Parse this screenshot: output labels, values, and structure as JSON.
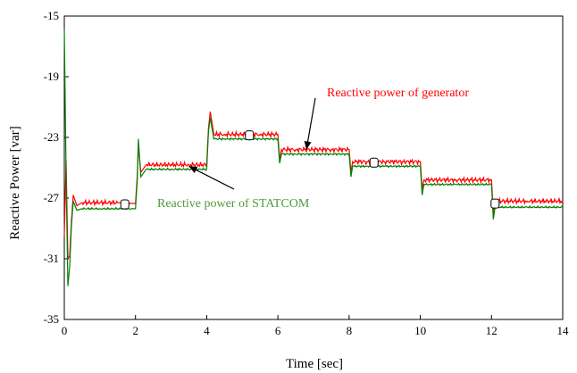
{
  "chart_data": {
    "type": "line",
    "xlabel": "Time [sec]",
    "ylabel": "Reactive Power [var]",
    "xlim": [
      0,
      14
    ],
    "ylim": [
      -35,
      -15
    ],
    "xticks": [
      0,
      2,
      4,
      6,
      8,
      10,
      12,
      14
    ],
    "yticks": [
      -15,
      -19,
      -23,
      -27,
      -31,
      -35
    ],
    "colors": {
      "generator": "#ff0000",
      "statcom": "#008000",
      "marker": "#000000"
    },
    "series": [
      {
        "color": "#ff0000",
        "points": [
          [
            0,
            -29.5
          ],
          [
            0.05,
            -24.5
          ],
          [
            0.1,
            -31.0
          ],
          [
            0.15,
            -30.8
          ],
          [
            0.2,
            -28.5
          ],
          [
            0.25,
            -26.8
          ],
          [
            0.35,
            -27.5
          ],
          [
            0.5,
            -27.3
          ],
          [
            1.0,
            -27.3
          ],
          [
            1.5,
            -27.3
          ],
          [
            1.9,
            -27.35
          ],
          [
            2.0,
            -27.35
          ],
          [
            2.05,
            -25.5
          ],
          [
            2.08,
            -23.6
          ],
          [
            2.15,
            -25.3
          ],
          [
            2.3,
            -24.8
          ],
          [
            3.0,
            -24.8
          ],
          [
            3.5,
            -24.8
          ],
          [
            4.0,
            -24.8
          ],
          [
            4.05,
            -22.4
          ],
          [
            4.1,
            -21.3
          ],
          [
            4.2,
            -22.8
          ],
          [
            4.5,
            -22.8
          ],
          [
            5.0,
            -22.8
          ],
          [
            5.5,
            -22.8
          ],
          [
            6.0,
            -22.8
          ],
          [
            6.05,
            -24.5
          ],
          [
            6.1,
            -23.8
          ],
          [
            6.5,
            -23.8
          ],
          [
            7.0,
            -23.8
          ],
          [
            7.5,
            -23.8
          ],
          [
            8.0,
            -23.8
          ],
          [
            8.05,
            -25.3
          ],
          [
            8.1,
            -24.6
          ],
          [
            8.5,
            -24.6
          ],
          [
            9.0,
            -24.6
          ],
          [
            9.5,
            -24.6
          ],
          [
            10.0,
            -24.6
          ],
          [
            10.05,
            -26.4
          ],
          [
            10.1,
            -25.8
          ],
          [
            10.5,
            -25.8
          ],
          [
            11.0,
            -25.8
          ],
          [
            11.5,
            -25.8
          ],
          [
            12.0,
            -25.8
          ],
          [
            12.05,
            -28.0
          ],
          [
            12.1,
            -27.2
          ],
          [
            12.5,
            -27.2
          ],
          [
            13.0,
            -27.2
          ],
          [
            13.5,
            -27.2
          ],
          [
            14.0,
            -27.2
          ]
        ]
      },
      {
        "color": "#008000",
        "points": [
          [
            0,
            -15.8
          ],
          [
            0.05,
            -25.5
          ],
          [
            0.1,
            -32.8
          ],
          [
            0.15,
            -31.5
          ],
          [
            0.2,
            -28.8
          ],
          [
            0.25,
            -27.2
          ],
          [
            0.35,
            -27.8
          ],
          [
            0.5,
            -27.7
          ],
          [
            1.0,
            -27.7
          ],
          [
            1.5,
            -27.7
          ],
          [
            1.9,
            -27.7
          ],
          [
            2.0,
            -27.7
          ],
          [
            2.05,
            -25.8
          ],
          [
            2.08,
            -23.1
          ],
          [
            2.15,
            -25.6
          ],
          [
            2.3,
            -25.1
          ],
          [
            3.0,
            -25.1
          ],
          [
            3.5,
            -25.1
          ],
          [
            4.0,
            -25.1
          ],
          [
            4.05,
            -22.6
          ],
          [
            4.1,
            -21.7
          ],
          [
            4.2,
            -23.1
          ],
          [
            4.5,
            -23.1
          ],
          [
            5.0,
            -23.1
          ],
          [
            5.5,
            -23.1
          ],
          [
            6.0,
            -23.1
          ],
          [
            6.05,
            -24.7
          ],
          [
            6.1,
            -24.1
          ],
          [
            6.5,
            -24.1
          ],
          [
            7.0,
            -24.1
          ],
          [
            7.5,
            -24.1
          ],
          [
            8.0,
            -24.1
          ],
          [
            8.05,
            -25.6
          ],
          [
            8.1,
            -24.9
          ],
          [
            8.5,
            -24.9
          ],
          [
            9.0,
            -24.9
          ],
          [
            9.5,
            -24.9
          ],
          [
            10.0,
            -24.9
          ],
          [
            10.05,
            -26.8
          ],
          [
            10.1,
            -26.1
          ],
          [
            10.5,
            -26.1
          ],
          [
            11.0,
            -26.1
          ],
          [
            11.5,
            -26.1
          ],
          [
            12.0,
            -26.1
          ],
          [
            12.05,
            -28.4
          ],
          [
            12.1,
            -27.6
          ],
          [
            12.5,
            -27.6
          ],
          [
            13.0,
            -27.6
          ],
          [
            13.5,
            -27.6
          ],
          [
            14.0,
            -27.6
          ]
        ]
      }
    ],
    "markers": [
      {
        "x": 1.7,
        "y": -27.35
      },
      {
        "x": 5.2,
        "y": -22.8
      },
      {
        "x": 8.7,
        "y": -24.6
      },
      {
        "x": 12.1,
        "y": -27.3
      }
    ],
    "annotations": [
      {
        "text": "Reactive power of generator",
        "color": "#ff0000",
        "arrow_to": {
          "x": 6.8,
          "y": -23.8
        }
      },
      {
        "text": "Reactive power of STATCOM",
        "color": "#4e9a3a",
        "arrow_to": {
          "x": 3.5,
          "y": -24.9
        }
      }
    ]
  }
}
